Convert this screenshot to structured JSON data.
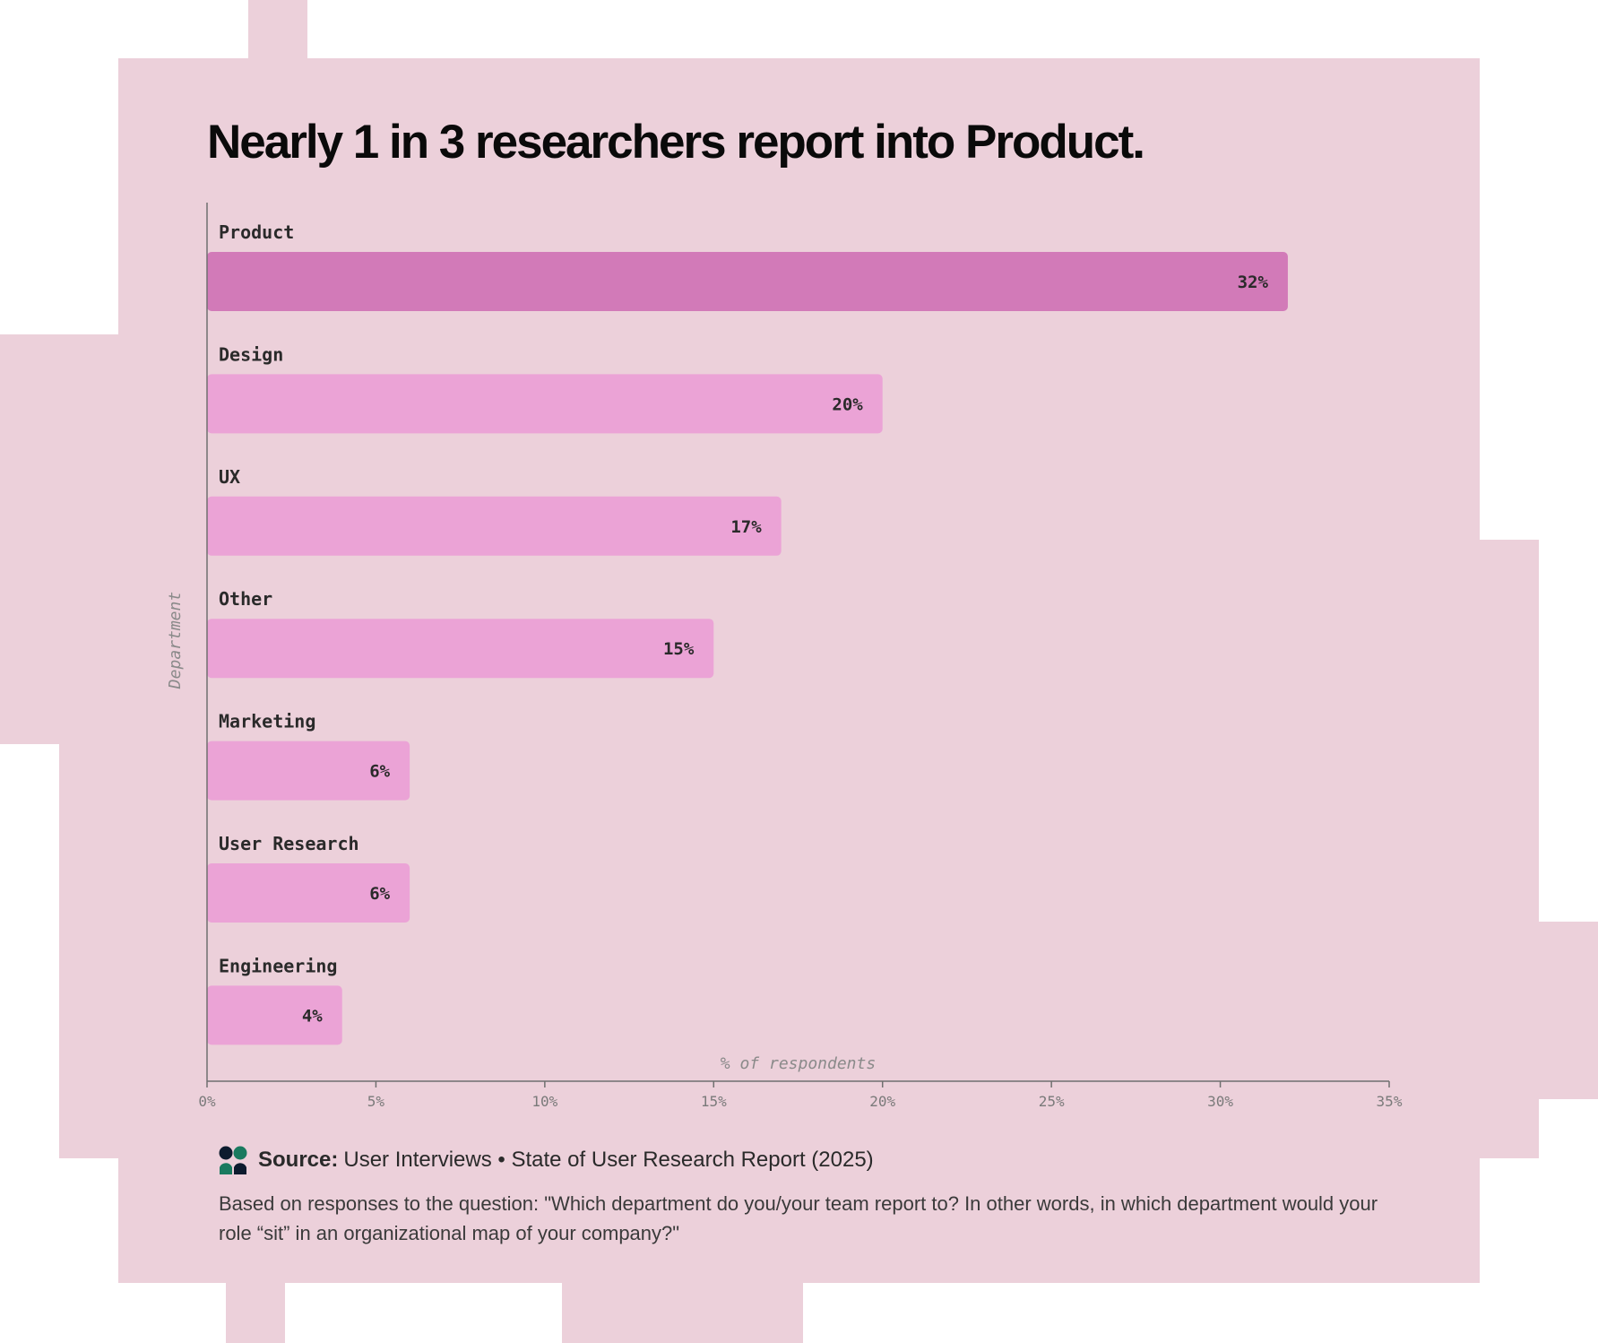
{
  "colors": {
    "background": "#ecd0da",
    "highlight_bar": "#d27ab8",
    "bar": "#eba3d6",
    "axis": "#6f6f6f",
    "logo_dark": "#0d1b2e",
    "logo_green": "#1a7a5f"
  },
  "chart_data": {
    "type": "bar",
    "orientation": "horizontal",
    "title": "Nearly 1 in 3 researchers report into Product.",
    "xlabel": "% of respondents",
    "ylabel": "Department",
    "categories": [
      "Product",
      "Design",
      "UX",
      "Other",
      "Marketing",
      "User Research",
      "Engineering"
    ],
    "values": [
      32,
      20,
      17,
      15,
      6,
      6,
      4
    ],
    "value_labels": [
      "32%",
      "20%",
      "17%",
      "15%",
      "6%",
      "6%",
      "4%"
    ],
    "highlight_category": "Product",
    "xlim": [
      0,
      35
    ],
    "xticks": [
      0,
      5,
      10,
      15,
      20,
      25,
      30,
      35
    ],
    "xtick_labels": [
      "0%",
      "5%",
      "10%",
      "15%",
      "20%",
      "25%",
      "30%",
      "35%"
    ],
    "grid": false,
    "legend": "none"
  },
  "footer": {
    "logo_icon": "user-interviews-logo-icon",
    "source_label": "Source:",
    "source_text": "User Interviews • State of User Research Report (2025)",
    "note": "Based on responses to the question: \"Which department do you/your team report to? In other words, in which department would your role “sit” in an organizational map of your company?\""
  }
}
